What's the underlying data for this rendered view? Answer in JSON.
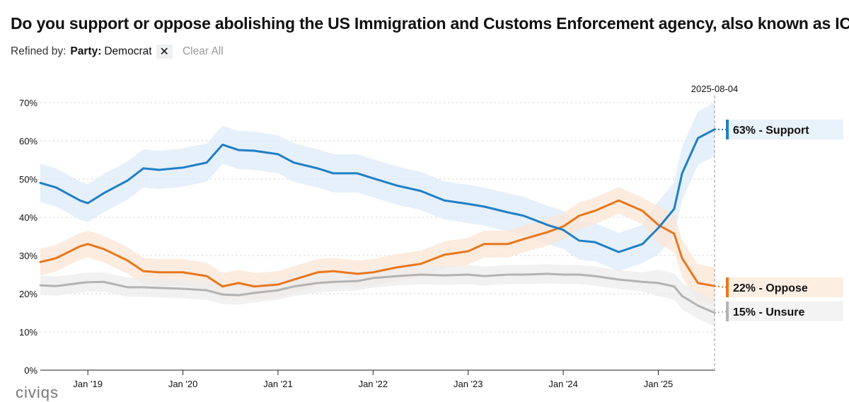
{
  "title": "Do you support or oppose abolishing the US Immigration and Customs Enforcement agency, also known as ICE?",
  "refine": {
    "label": "Refined by:",
    "filter_key": "Party:",
    "filter_value": "Democrat",
    "remove_icon": "close-icon",
    "remove_glyph": "✕",
    "clear_label": "Clear All"
  },
  "logo": "civiqs",
  "chart_data": {
    "type": "line",
    "title": "",
    "xlabel": "",
    "ylabel": "",
    "ylim": [
      0,
      70
    ],
    "yticks": [
      "0%",
      "10%",
      "20%",
      "30%",
      "40%",
      "50%",
      "60%",
      "70%"
    ],
    "xticks": [
      {
        "date": "2019-01",
        "label": "Jan '19"
      },
      {
        "date": "2020-01",
        "label": "Jan '20"
      },
      {
        "date": "2021-01",
        "label": "Jan '21"
      },
      {
        "date": "2022-01",
        "label": "Jan '22"
      },
      {
        "date": "2023-01",
        "label": "Jan '23"
      },
      {
        "date": "2024-01",
        "label": "Jan '24"
      },
      {
        "date": "2025-01",
        "label": "Jan '25"
      }
    ],
    "xlim": [
      "2018-07",
      "2025-08-04"
    ],
    "grid": true,
    "current_date": "2025-08-04",
    "x": [
      "2018-07",
      "2018-09",
      "2018-12",
      "2019-01",
      "2019-03",
      "2019-06",
      "2019-08",
      "2019-10",
      "2020-01",
      "2020-04",
      "2020-06",
      "2020-08",
      "2020-10",
      "2021-01",
      "2021-03",
      "2021-06",
      "2021-08",
      "2021-11",
      "2022-01",
      "2022-04",
      "2022-07",
      "2022-10",
      "2023-01",
      "2023-03",
      "2023-06",
      "2023-08",
      "2023-11",
      "2024-01",
      "2024-03",
      "2024-05",
      "2024-08",
      "2024-11",
      "2025-01",
      "2025-03",
      "2025-04",
      "2025-06",
      "2025-08-04"
    ],
    "series": [
      {
        "name": "Support",
        "end_label": "63% - Support",
        "color": "#1f7fc4",
        "band_color": "#dcebf8",
        "label_bg": "#e8f2fb",
        "margin": 5,
        "values": [
          49,
          47.8,
          44.4,
          43.7,
          46.3,
          49.6,
          52.8,
          52.4,
          53,
          54.3,
          59,
          57.6,
          57.4,
          56.5,
          54.3,
          52.8,
          51.5,
          51.5,
          50.2,
          48.3,
          46.9,
          44.4,
          43.5,
          42.8,
          41.3,
          40.4,
          38,
          36.7,
          33.9,
          33.5,
          30.9,
          33,
          37.2,
          42.2,
          51.5,
          60.7,
          63
        ]
      },
      {
        "name": "Oppose",
        "end_label": "22% - Oppose",
        "color": "#e8761e",
        "band_color": "#fbe6d4",
        "label_bg": "#fdeee2",
        "margin": 3.5,
        "values": [
          28.3,
          29.3,
          32.4,
          33,
          31.7,
          28.7,
          25.9,
          25.6,
          25.6,
          24.6,
          21.9,
          22.8,
          21.9,
          22.4,
          23.7,
          25.6,
          25.9,
          25.2,
          25.6,
          26.9,
          27.8,
          30.2,
          31.1,
          33,
          33,
          34.3,
          36.1,
          37.6,
          40.4,
          41.7,
          44.4,
          41.7,
          38,
          35.7,
          29.3,
          22.8,
          22
        ]
      },
      {
        "name": "Unsure",
        "end_label": "15% - Unsure",
        "color": "#b3b3b3",
        "band_color": "#ececec",
        "label_bg": "#f3f3f3",
        "margin": 2.5,
        "values": [
          22.2,
          22,
          22.8,
          23,
          23.1,
          21.7,
          21.7,
          21.5,
          21.3,
          20.9,
          19.8,
          19.6,
          20.2,
          20.9,
          21.9,
          22.8,
          23.1,
          23.3,
          24.1,
          24.6,
          25,
          24.8,
          25,
          24.6,
          25,
          25,
          25.2,
          25,
          25,
          24.6,
          23.7,
          23.1,
          22.8,
          21.9,
          19.4,
          16.9,
          15
        ]
      }
    ]
  }
}
